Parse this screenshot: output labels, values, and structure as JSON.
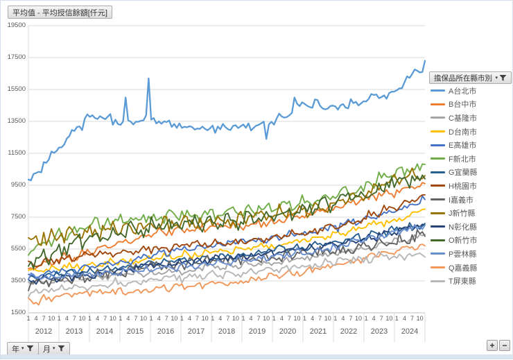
{
  "header": {
    "title_button": "平均值 - 平均授信餘額[仟元]"
  },
  "legend": {
    "header": "擔保品所在縣市別"
  },
  "controls": {
    "year_button": "年",
    "month_button": "月",
    "plus_label": "+",
    "minus_label": "−",
    "filter_icon": "funnel-icon",
    "dropdown_icon": "chevron-down-icon"
  },
  "chart_data": {
    "type": "line",
    "title": "平均值 - 平均授信餘額[仟元]",
    "legend_title": "擔保品所在縣市別",
    "legend_position": "right",
    "grid": "horizontal-only",
    "y_axis": {
      "min": 1500,
      "max": 19500,
      "step": 2000,
      "unit": "仟元",
      "ticks": [
        1500,
        3500,
        5500,
        7500,
        9500,
        11500,
        13500,
        15500,
        17500,
        19500
      ]
    },
    "x_axis": {
      "years": [
        2012,
        2013,
        2014,
        2015,
        2016,
        2017,
        2018,
        2019,
        2020,
        2021,
        2022,
        2023,
        2024
      ],
      "month_ticks": [
        1,
        4,
        7,
        10
      ],
      "points_per_year": 12
    },
    "series": [
      {
        "name": "A台北市",
        "color": "#5B9BD5",
        "jan_values_2012_2024": [
          9600,
          12000,
          13800,
          13500,
          13600,
          13200,
          13100,
          13200,
          13400,
          14700,
          14400,
          14800,
          15400
        ],
        "dec_2024": 17300,
        "monthly_volatility": 320,
        "spikes": {
          "38": 15000,
          "47": 16200,
          "93": 12400,
          "104": 15000,
          "154": 16600
        }
      },
      {
        "name": "B台中市",
        "color": "#ED7D31",
        "jan_values_2012_2024": [
          4300,
          4800,
          5300,
          5900,
          6400,
          6700,
          6900,
          7000,
          7200,
          7600,
          8200,
          8700,
          9100
        ],
        "dec_2024": 9600,
        "monthly_volatility": 300
      },
      {
        "name": "C基隆市",
        "color": "#A5A5A5",
        "jan_values_2012_2024": [
          3400,
          3500,
          3700,
          3900,
          4000,
          4200,
          4400,
          4500,
          4700,
          4900,
          5200,
          5600,
          6000
        ],
        "dec_2024": 6400,
        "monthly_volatility": 260
      },
      {
        "name": "D台南市",
        "color": "#FFC000",
        "jan_values_2012_2024": [
          4100,
          4300,
          4500,
          4700,
          4900,
          5100,
          5300,
          5500,
          5700,
          6000,
          6400,
          6900,
          7400
        ],
        "dec_2024": 8000,
        "monthly_volatility": 270
      },
      {
        "name": "E高雄市",
        "color": "#4472C4",
        "jan_values_2012_2024": [
          3800,
          4100,
          4400,
          4700,
          5100,
          5500,
          5800,
          6000,
          6200,
          6500,
          6900,
          7400,
          8000
        ],
        "dec_2024": 8600,
        "monthly_volatility": 300
      },
      {
        "name": "F新北市",
        "color": "#70AD47",
        "jan_values_2012_2024": [
          5300,
          6300,
          7000,
          7300,
          7500,
          7600,
          7700,
          7900,
          8100,
          8400,
          8800,
          9400,
          10300
        ],
        "dec_2024": 10800,
        "monthly_volatility": 450
      },
      {
        "name": "G宜蘭縣",
        "color": "#255E91",
        "jan_values_2012_2024": [
          3700,
          3900,
          4100,
          4300,
          4600,
          4800,
          5000,
          5200,
          5400,
          5600,
          5900,
          6300,
          6700
        ],
        "dec_2024": 7100,
        "monthly_volatility": 280
      },
      {
        "name": "H桃園市",
        "color": "#9E480E",
        "jan_values_2012_2024": [
          4500,
          4800,
          5100,
          5300,
          5500,
          5700,
          5800,
          6000,
          6200,
          6500,
          6900,
          7500,
          8200
        ],
        "dec_2024": 8900,
        "monthly_volatility": 280
      },
      {
        "name": "I嘉義市",
        "color": "#636363",
        "jan_values_2012_2024": [
          3300,
          3500,
          3800,
          4100,
          4400,
          4600,
          4700,
          4800,
          5000,
          5200,
          5400,
          5700,
          6000
        ],
        "dec_2024": 6300,
        "monthly_volatility": 430
      },
      {
        "name": "J新竹縣",
        "color": "#997300",
        "jan_values_2012_2024": [
          6100,
          6300,
          6600,
          6800,
          7000,
          7100,
          7200,
          7400,
          7600,
          7900,
          8400,
          9100,
          9900
        ],
        "dec_2024": 10100,
        "monthly_volatility": 520
      },
      {
        "name": "N彰化縣",
        "color": "#264478",
        "jan_values_2012_2024": [
          3500,
          3700,
          3900,
          4200,
          4400,
          4600,
          4800,
          5000,
          5200,
          5500,
          5800,
          6200,
          6600
        ],
        "dec_2024": 7000,
        "monthly_volatility": 280
      },
      {
        "name": "O新竹市",
        "color": "#43682B",
        "jan_values_2012_2024": [
          4700,
          5400,
          6200,
          6600,
          7000,
          7100,
          7200,
          7400,
          7600,
          7900,
          8400,
          9000,
          9800
        ],
        "dec_2024": 9900,
        "monthly_volatility": 560
      },
      {
        "name": "P雲林縣",
        "color": "#698ED0",
        "jan_values_2012_2024": [
          3650,
          3800,
          3950,
          4100,
          4250,
          4400,
          4600,
          4800,
          5000,
          5300,
          5600,
          6100,
          6600
        ],
        "dec_2024": 7000,
        "monthly_volatility": 280
      },
      {
        "name": "Q嘉義縣",
        "color": "#F1975A",
        "jan_values_2012_2024": [
          2200,
          2500,
          2700,
          2800,
          2900,
          3100,
          3300,
          3500,
          3800,
          4100,
          4500,
          5000,
          5400
        ],
        "dec_2024": 5700,
        "monthly_volatility": 300
      },
      {
        "name": "T屏東縣",
        "color": "#B7B7B7",
        "jan_values_2012_2024": [
          2800,
          3000,
          3200,
          3400,
          3600,
          3750,
          3900,
          4000,
          4200,
          4400,
          4700,
          4900,
          5100
        ],
        "dec_2024": 5000,
        "monthly_volatility": 300
      }
    ]
  }
}
